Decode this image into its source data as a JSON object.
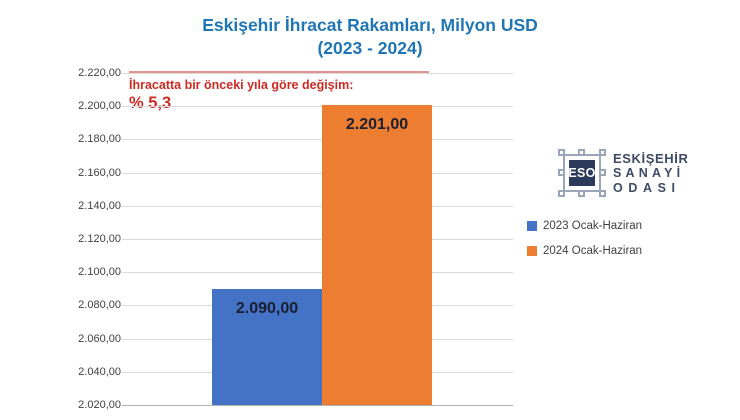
{
  "title": {
    "line1": "Eskişehir İhracat Rakamları, Milyon USD",
    "line2": "(2023 - 2024)"
  },
  "annotation": {
    "line1": "İhracatta bir önceki yıla göre değişim:",
    "line2": "% 5,3"
  },
  "chart_data": {
    "type": "bar",
    "title": "Eskişehir İhracat Rakamları, Milyon USD (2023 - 2024)",
    "categories": [
      ""
    ],
    "series": [
      {
        "name": "2023 Ocak-Haziran",
        "values": [
          2090.0
        ],
        "label": "2.090,00",
        "color": "#4472C4"
      },
      {
        "name": "2024 Ocak-Haziran",
        "values": [
          2201.0
        ],
        "label": "2.201,00",
        "color": "#ED7D31"
      }
    ],
    "ylim": [
      2020,
      2220
    ],
    "ytick_step": 20,
    "ytick_labels": [
      "2.220,00",
      "2.200,00",
      "2.180,00",
      "2.160,00",
      "2.140,00",
      "2.120,00",
      "2.100,00",
      "2.080,00",
      "2.060,00",
      "2.040,00",
      "2.020,00"
    ],
    "grid": true,
    "legend_position": "right",
    "annotation_text": "İhracatta bir önceki yıla göre değişim: % 5,3"
  },
  "logo": {
    "abbr": "ESO",
    "line1": "ESKİŞEHİR",
    "line2": "SANAYİ",
    "line3": "ODASI"
  },
  "colors": {
    "title_blue": "#2076b4",
    "annotation_red": "#cc2b24",
    "bar_2023": "#4472C4",
    "bar_2024": "#ED7D31",
    "gridline": "#d9d9d9",
    "data_label": "#1a2032",
    "logo_navy": "#2e3a5c",
    "logo_slate": "#9aa5b8"
  }
}
